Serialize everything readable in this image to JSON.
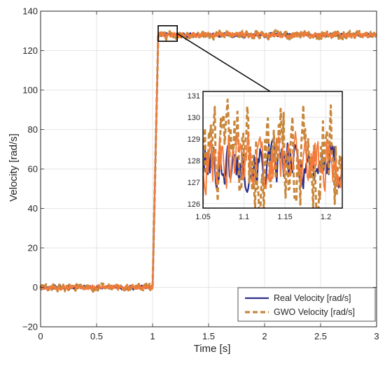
{
  "chart_data": {
    "type": "line",
    "title": "",
    "xlabel": "Time [s]",
    "ylabel": "Velocity [rad/s]",
    "xlim": [
      0,
      3
    ],
    "ylim": [
      -20,
      140
    ],
    "xticks": [
      0,
      0.5,
      1,
      1.5,
      2,
      2.5,
      3
    ],
    "xtick_labels": [
      "0",
      "0.5",
      "1",
      "1.5",
      "2",
      "2.5",
      "3"
    ],
    "yticks": [
      -20,
      0,
      20,
      40,
      60,
      80,
      100,
      120,
      140
    ],
    "ytick_labels": [
      "−20",
      "0",
      "20",
      "40",
      "60",
      "80",
      "100",
      "120",
      "140"
    ],
    "grid": true,
    "legend_position": "bottom-right",
    "series": [
      {
        "name": "Real Velocity [rad/s]",
        "color": "#2b2d87",
        "style": "solid",
        "phases": [
          {
            "x_start": 0,
            "x_end": 1.0,
            "y_mean": 0,
            "noise": 1.2
          },
          {
            "x_start": 1.0,
            "x_end": 1.05,
            "y_start": 0,
            "y_end": 127
          },
          {
            "x_start": 1.05,
            "x_end": 3.0,
            "y_mean": 127.8,
            "noise": 1.2
          }
        ]
      },
      {
        "name": "GWO Velocity [rad/s]",
        "color": "#c8863a",
        "style": "dashed",
        "phases": [
          {
            "x_start": 0,
            "x_end": 1.0,
            "y_mean": 0,
            "noise": 2.0
          },
          {
            "x_start": 1.0,
            "x_end": 1.05,
            "y_start": 0,
            "y_end": 127
          },
          {
            "x_start": 1.05,
            "x_end": 3.0,
            "y_mean": 128.0,
            "noise": 2.3
          }
        ]
      },
      {
        "name": "",
        "color": "#f47a3a",
        "style": "solid",
        "phases": [
          {
            "x_start": 0,
            "x_end": 1.0,
            "y_mean": 0,
            "noise": 1.5
          },
          {
            "x_start": 1.0,
            "x_end": 1.05,
            "y_start": 0,
            "y_end": 127
          },
          {
            "x_start": 1.05,
            "x_end": 3.0,
            "y_mean": 128.0,
            "noise": 1.6
          }
        ]
      }
    ],
    "inset": {
      "xlim": [
        1.05,
        1.22
      ],
      "ylim": [
        125.8,
        131.2
      ],
      "xticks": [
        1.05,
        1.1,
        1.15,
        1.2
      ],
      "xtick_labels": [
        "1.05",
        "1.1",
        "1.15",
        "1.2"
      ],
      "yticks": [
        126,
        127,
        128,
        129,
        130,
        131
      ],
      "ytick_labels": [
        "126",
        "127",
        "128",
        "129",
        "130",
        "131"
      ],
      "zoom_region": {
        "x": [
          1.05,
          1.22
        ],
        "y": [
          125.8,
          131.2
        ]
      }
    },
    "legend": [
      {
        "label": "Real Velocity [rad/s]",
        "color": "#2b2d87",
        "style": "solid"
      },
      {
        "label": "GWO Velocity [rad/s]",
        "color": "#c8863a",
        "style": "dashed"
      }
    ]
  }
}
